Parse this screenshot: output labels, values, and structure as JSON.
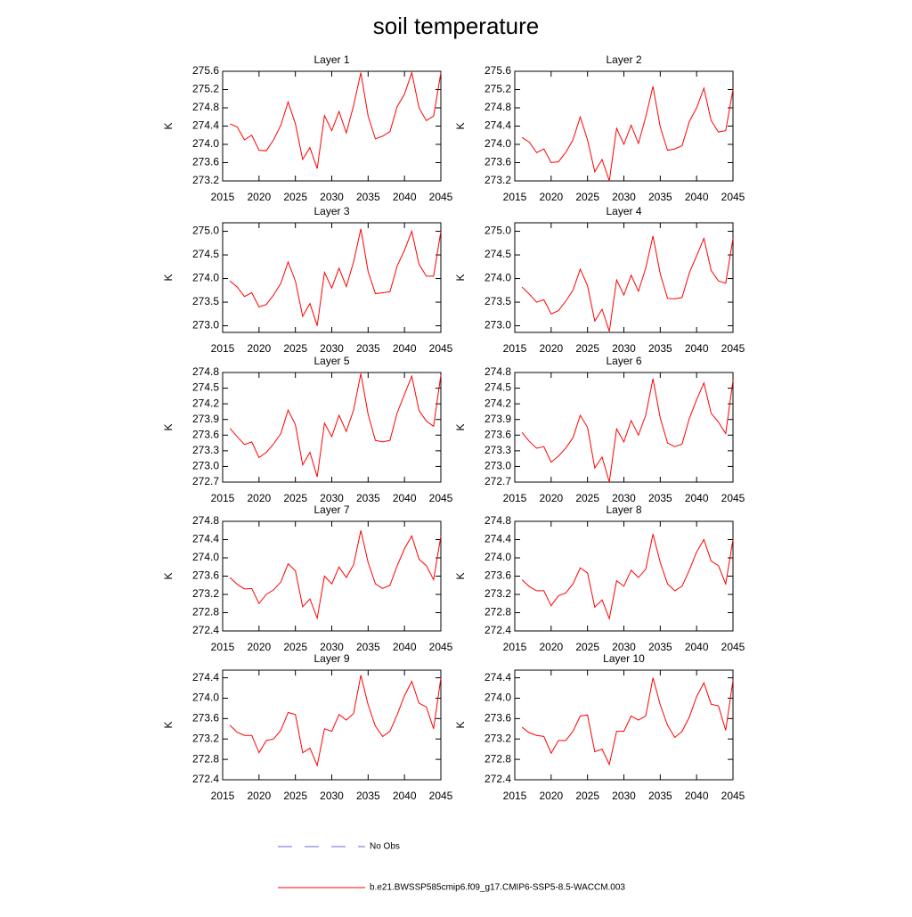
{
  "title": "soil temperature",
  "legend": [
    {
      "label": "No Obs",
      "color": "#6a6ad8",
      "dash": true
    },
    {
      "label": "b.e21.BWSSP585cmip6.f09_g17.CMIP6-SSP5-8.5-WACCM.003",
      "color": "#ff0000",
      "dash": false
    }
  ],
  "chart_data": [
    {
      "type": "line",
      "title": "Layer 1",
      "ylabel": "K",
      "x": [
        2016,
        2017,
        2018,
        2019,
        2020,
        2021,
        2022,
        2023,
        2024,
        2025,
        2026,
        2027,
        2028,
        2029,
        2030,
        2031,
        2032,
        2033,
        2034,
        2035,
        2036,
        2037,
        2038,
        2039,
        2040,
        2041,
        2042,
        2043,
        2044,
        2045
      ],
      "xlim": [
        2015,
        2045
      ],
      "xticks": [
        2015,
        2020,
        2025,
        2030,
        2035,
        2040,
        2045
      ],
      "ylim": [
        273.2,
        275.6
      ],
      "yticks": [
        273.2,
        273.6,
        {
          "value": 274,
          "label": "274.0"
        },
        274.4,
        274.8,
        275.2,
        275.6
      ],
      "series": [
        {
          "color": "#ff0000",
          "values": [
            274.45,
            274.38,
            274.1,
            274.2,
            273.87,
            273.86,
            274.1,
            274.42,
            274.93,
            274.45,
            273.67,
            273.93,
            273.47,
            274.63,
            274.3,
            274.72,
            274.25,
            274.85,
            275.57,
            274.62,
            274.12,
            274.18,
            274.28,
            274.83,
            275.1,
            275.57,
            274.8,
            274.52,
            274.62,
            275.57
          ]
        }
      ]
    },
    {
      "type": "line",
      "title": "Layer 2",
      "ylabel": "K",
      "x": [
        2016,
        2017,
        2018,
        2019,
        2020,
        2021,
        2022,
        2023,
        2024,
        2025,
        2026,
        2027,
        2028,
        2029,
        2030,
        2031,
        2032,
        2033,
        2034,
        2035,
        2036,
        2037,
        2038,
        2039,
        2040,
        2041,
        2042,
        2043,
        2044,
        2045
      ],
      "xlim": [
        2015,
        2045
      ],
      "xticks": [
        2015,
        2020,
        2025,
        2030,
        2035,
        2040,
        2045
      ],
      "ylim": [
        273.2,
        275.6
      ],
      "yticks": [
        273.2,
        273.6,
        {
          "value": 274,
          "label": "274.0"
        },
        274.4,
        274.8,
        275.2,
        275.6
      ],
      "series": [
        {
          "color": "#ff0000",
          "values": [
            274.15,
            274.05,
            273.82,
            273.9,
            273.6,
            273.62,
            273.82,
            274.1,
            274.6,
            274.1,
            273.4,
            273.67,
            273.2,
            274.35,
            274.0,
            274.42,
            274.02,
            274.6,
            275.27,
            274.38,
            273.87,
            273.9,
            273.97,
            274.5,
            274.8,
            275.23,
            274.52,
            274.27,
            274.3,
            275.2
          ]
        }
      ]
    },
    {
      "type": "line",
      "title": "Layer 3",
      "ylabel": "K",
      "x": [
        2016,
        2017,
        2018,
        2019,
        2020,
        2021,
        2022,
        2023,
        2024,
        2025,
        2026,
        2027,
        2028,
        2029,
        2030,
        2031,
        2032,
        2033,
        2034,
        2035,
        2036,
        2037,
        2038,
        2039,
        2040,
        2041,
        2042,
        2043,
        2044,
        2045
      ],
      "xlim": [
        2015,
        2045
      ],
      "xticks": [
        2015,
        2020,
        2025,
        2030,
        2035,
        2040,
        2045
      ],
      "ylim": [
        272.86,
        275.18
      ],
      "yticks": [
        {
          "value": 273,
          "label": "273.0"
        },
        273.5,
        {
          "value": 274,
          "label": "274.0"
        },
        274.5,
        {
          "value": 275,
          "label": "275.0"
        }
      ],
      "series": [
        {
          "color": "#ff0000",
          "values": [
            273.95,
            273.82,
            273.62,
            273.7,
            273.4,
            273.45,
            273.65,
            273.9,
            274.35,
            273.95,
            273.2,
            273.47,
            273.0,
            274.13,
            273.8,
            274.22,
            273.83,
            274.35,
            275.05,
            274.15,
            273.68,
            273.7,
            273.72,
            274.27,
            274.6,
            275.0,
            274.3,
            274.05,
            274.05,
            275.0
          ]
        }
      ]
    },
    {
      "type": "line",
      "title": "Layer 4",
      "ylabel": "K",
      "x": [
        2016,
        2017,
        2018,
        2019,
        2020,
        2021,
        2022,
        2023,
        2024,
        2025,
        2026,
        2027,
        2028,
        2029,
        2030,
        2031,
        2032,
        2033,
        2034,
        2035,
        2036,
        2037,
        2038,
        2039,
        2040,
        2041,
        2042,
        2043,
        2044,
        2045
      ],
      "xlim": [
        2015,
        2045
      ],
      "xticks": [
        2015,
        2020,
        2025,
        2030,
        2035,
        2040,
        2045
      ],
      "ylim": [
        272.86,
        275.18
      ],
      "yticks": [
        {
          "value": 273,
          "label": "273.0"
        },
        273.5,
        {
          "value": 274,
          "label": "274.0"
        },
        274.5,
        {
          "value": 275,
          "label": "275.0"
        }
      ],
      "series": [
        {
          "color": "#ff0000",
          "values": [
            273.82,
            273.67,
            273.5,
            273.55,
            273.25,
            273.32,
            273.52,
            273.75,
            274.2,
            273.85,
            273.1,
            273.35,
            272.88,
            273.97,
            273.65,
            274.07,
            273.73,
            274.22,
            274.9,
            274.1,
            273.58,
            273.57,
            273.6,
            274.12,
            274.48,
            274.85,
            274.17,
            273.95,
            273.9,
            274.85
          ]
        }
      ]
    },
    {
      "type": "line",
      "title": "Layer 5",
      "ylabel": "K",
      "x": [
        2016,
        2017,
        2018,
        2019,
        2020,
        2021,
        2022,
        2023,
        2024,
        2025,
        2026,
        2027,
        2028,
        2029,
        2030,
        2031,
        2032,
        2033,
        2034,
        2035,
        2036,
        2037,
        2038,
        2039,
        2040,
        2041,
        2042,
        2043,
        2044,
        2045
      ],
      "xlim": [
        2015,
        2045
      ],
      "xticks": [
        2015,
        2020,
        2025,
        2030,
        2035,
        2040,
        2045
      ],
      "ylim": [
        272.7,
        274.8
      ],
      "yticks": [
        272.7,
        {
          "value": 273,
          "label": "273.0"
        },
        273.3,
        273.6,
        273.9,
        274.2,
        274.5,
        274.8
      ],
      "series": [
        {
          "color": "#ff0000",
          "values": [
            273.73,
            273.57,
            273.42,
            273.47,
            273.17,
            273.27,
            273.43,
            273.63,
            274.08,
            273.8,
            273.03,
            273.27,
            272.8,
            273.83,
            273.57,
            273.98,
            273.67,
            274.08,
            274.78,
            274.0,
            273.5,
            273.47,
            273.5,
            274.03,
            274.38,
            274.73,
            274.07,
            273.87,
            273.77,
            274.75
          ]
        }
      ]
    },
    {
      "type": "line",
      "title": "Layer 6",
      "ylabel": "K",
      "x": [
        2016,
        2017,
        2018,
        2019,
        2020,
        2021,
        2022,
        2023,
        2024,
        2025,
        2026,
        2027,
        2028,
        2029,
        2030,
        2031,
        2032,
        2033,
        2034,
        2035,
        2036,
        2037,
        2038,
        2039,
        2040,
        2041,
        2042,
        2043,
        2044,
        2045
      ],
      "xlim": [
        2015,
        2045
      ],
      "xticks": [
        2015,
        2020,
        2025,
        2030,
        2035,
        2040,
        2045
      ],
      "ylim": [
        272.7,
        274.8
      ],
      "yticks": [
        272.7,
        {
          "value": 273,
          "label": "273.0"
        },
        273.3,
        273.6,
        273.9,
        274.2,
        274.5,
        274.8
      ],
      "series": [
        {
          "color": "#ff0000",
          "values": [
            273.65,
            273.48,
            273.35,
            273.38,
            273.08,
            273.2,
            273.35,
            273.55,
            273.98,
            273.75,
            272.97,
            273.18,
            272.7,
            273.72,
            273.47,
            273.88,
            273.6,
            273.98,
            274.68,
            273.93,
            273.45,
            273.38,
            273.43,
            273.92,
            274.28,
            274.6,
            274.02,
            273.85,
            273.63,
            274.65
          ]
        }
      ]
    },
    {
      "type": "line",
      "title": "Layer 7",
      "ylabel": "K",
      "x": [
        2016,
        2017,
        2018,
        2019,
        2020,
        2021,
        2022,
        2023,
        2024,
        2025,
        2026,
        2027,
        2028,
        2029,
        2030,
        2031,
        2032,
        2033,
        2034,
        2035,
        2036,
        2037,
        2038,
        2039,
        2040,
        2041,
        2042,
        2043,
        2044,
        2045
      ],
      "xlim": [
        2015,
        2045
      ],
      "xticks": [
        2015,
        2020,
        2025,
        2030,
        2035,
        2040,
        2045
      ],
      "ylim": [
        272.4,
        274.8
      ],
      "yticks": [
        272.4,
        272.8,
        273.2,
        273.6,
        {
          "value": 274,
          "label": "274.0"
        },
        274.4,
        274.8
      ],
      "series": [
        {
          "color": "#ff0000",
          "values": [
            273.57,
            273.42,
            273.32,
            273.33,
            273.0,
            273.2,
            273.3,
            273.47,
            273.87,
            273.72,
            272.93,
            273.1,
            272.68,
            273.6,
            273.43,
            273.8,
            273.57,
            273.85,
            274.6,
            273.9,
            273.43,
            273.33,
            273.4,
            273.83,
            274.2,
            274.48,
            273.97,
            273.83,
            273.52,
            274.48
          ]
        }
      ]
    },
    {
      "type": "line",
      "title": "Layer 8",
      "ylabel": "K",
      "x": [
        2016,
        2017,
        2018,
        2019,
        2020,
        2021,
        2022,
        2023,
        2024,
        2025,
        2026,
        2027,
        2028,
        2029,
        2030,
        2031,
        2032,
        2033,
        2034,
        2035,
        2036,
        2037,
        2038,
        2039,
        2040,
        2041,
        2042,
        2043,
        2044,
        2045
      ],
      "xlim": [
        2015,
        2045
      ],
      "xticks": [
        2015,
        2020,
        2025,
        2030,
        2035,
        2040,
        2045
      ],
      "ylim": [
        272.4,
        274.8
      ],
      "yticks": [
        272.4,
        272.8,
        273.2,
        273.6,
        {
          "value": 274,
          "label": "274.0"
        },
        274.4,
        274.8
      ],
      "series": [
        {
          "color": "#ff0000",
          "values": [
            273.52,
            273.37,
            273.28,
            273.28,
            272.95,
            273.17,
            273.23,
            273.43,
            273.78,
            273.67,
            272.92,
            273.08,
            272.67,
            273.5,
            273.38,
            273.73,
            273.57,
            273.75,
            274.52,
            273.9,
            273.43,
            273.28,
            273.38,
            273.73,
            274.13,
            274.4,
            273.93,
            273.83,
            273.43,
            274.4
          ]
        }
      ]
    },
    {
      "type": "line",
      "title": "Layer 9",
      "ylabel": "K",
      "x": [
        2016,
        2017,
        2018,
        2019,
        2020,
        2021,
        2022,
        2023,
        2024,
        2025,
        2026,
        2027,
        2028,
        2029,
        2030,
        2031,
        2032,
        2033,
        2034,
        2035,
        2036,
        2037,
        2038,
        2039,
        2040,
        2041,
        2042,
        2043,
        2044,
        2045
      ],
      "xlim": [
        2015,
        2045
      ],
      "xticks": [
        2015,
        2020,
        2025,
        2030,
        2035,
        2040,
        2045
      ],
      "ylim": [
        272.4,
        274.55
      ],
      "yticks": [
        272.4,
        272.8,
        273.2,
        273.6,
        {
          "value": 274,
          "label": "274.0"
        },
        274.4
      ],
      "series": [
        {
          "color": "#ff0000",
          "values": [
            273.47,
            273.33,
            273.27,
            273.27,
            272.93,
            273.17,
            273.2,
            273.37,
            273.72,
            273.68,
            272.93,
            273.02,
            272.68,
            273.4,
            273.35,
            273.68,
            273.57,
            273.7,
            274.45,
            273.87,
            273.45,
            273.25,
            273.35,
            273.68,
            274.05,
            274.33,
            273.9,
            273.83,
            273.4,
            274.4
          ]
        }
      ]
    },
    {
      "type": "line",
      "title": "Layer 10",
      "ylabel": "K",
      "x": [
        2016,
        2017,
        2018,
        2019,
        2020,
        2021,
        2022,
        2023,
        2024,
        2025,
        2026,
        2027,
        2028,
        2029,
        2030,
        2031,
        2032,
        2033,
        2034,
        2035,
        2036,
        2037,
        2038,
        2039,
        2040,
        2041,
        2042,
        2043,
        2044,
        2045
      ],
      "xlim": [
        2015,
        2045
      ],
      "xticks": [
        2015,
        2020,
        2025,
        2030,
        2035,
        2040,
        2045
      ],
      "ylim": [
        272.4,
        274.55
      ],
      "yticks": [
        272.4,
        272.8,
        273.2,
        273.6,
        {
          "value": 274,
          "label": "274.0"
        },
        274.4
      ],
      "series": [
        {
          "color": "#ff0000",
          "values": [
            273.43,
            273.32,
            273.27,
            273.25,
            272.92,
            273.17,
            273.17,
            273.35,
            273.65,
            273.67,
            272.95,
            273.0,
            272.7,
            273.35,
            273.35,
            273.65,
            273.57,
            273.65,
            274.4,
            273.87,
            273.47,
            273.23,
            273.35,
            273.63,
            274.03,
            274.3,
            273.88,
            273.85,
            273.37,
            274.35
          ]
        }
      ]
    }
  ]
}
